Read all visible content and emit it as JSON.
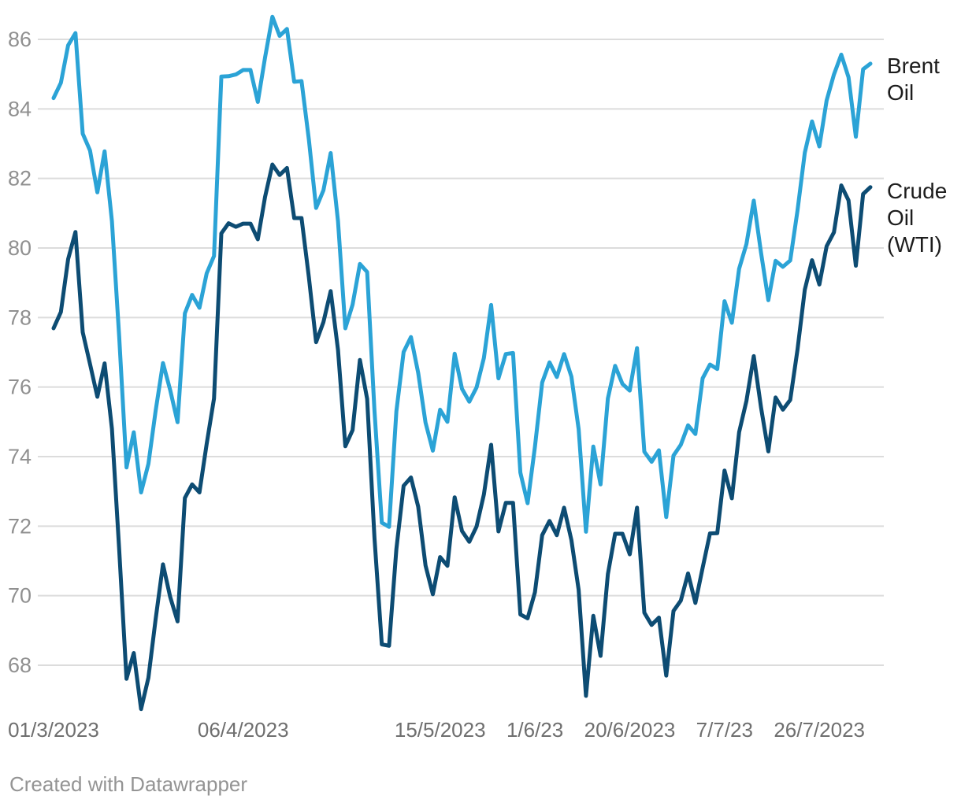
{
  "footer": "Created with Datawrapper",
  "chart_data": {
    "type": "line",
    "title": "",
    "xlabel": "",
    "ylabel": "",
    "grid": true,
    "legend_position": "right-end-of-lines",
    "ylim": [
      68,
      86
    ],
    "yticks": [
      68,
      70,
      72,
      74,
      76,
      78,
      80,
      82,
      84,
      86
    ],
    "x_tick_labels": [
      {
        "label": "01/3/2023",
        "index": 0
      },
      {
        "label": "06/4/2023",
        "index": 26
      },
      {
        "label": "15/5/2023",
        "index": 53
      },
      {
        "label": "1/6/23",
        "index": 66
      },
      {
        "label": "20/6/2023",
        "index": 79
      },
      {
        "label": "7/7/23",
        "index": 92
      },
      {
        "label": "26/7/2023",
        "index": 105
      }
    ],
    "series": [
      {
        "name": "Brent Oil",
        "label_lines": "Brent\nOil",
        "color": "#2ba3d6",
        "values": [
          84.31,
          84.75,
          85.83,
          86.18,
          83.29,
          82.8,
          81.6,
          82.78,
          80.77,
          77.45,
          73.69,
          74.7,
          72.97,
          73.79,
          75.32,
          76.69,
          75.91,
          74.99,
          78.12,
          78.65,
          78.28,
          79.27,
          79.77,
          84.93,
          84.94,
          84.99,
          85.12,
          85.12,
          84.2,
          85.48,
          86.65,
          86.1,
          86.3,
          84.78,
          84.8,
          83.12,
          81.15,
          81.66,
          82.73,
          80.77,
          77.69,
          78.37,
          79.54,
          79.31,
          75.32,
          72.1,
          71.98,
          75.3,
          77.01,
          77.44,
          76.41,
          74.98,
          74.17,
          75.35,
          75.0,
          76.96,
          75.95,
          75.58,
          75.99,
          76.84,
          78.36,
          76.25,
          76.95,
          76.98,
          73.54,
          72.66,
          74.28,
          76.13,
          76.71,
          76.29,
          76.95,
          76.3,
          74.79,
          71.84,
          74.29,
          73.2,
          75.67,
          76.61,
          76.09,
          75.9,
          77.12,
          74.14,
          73.85,
          74.18,
          72.26,
          74.03,
          74.34,
          74.9,
          74.65,
          76.25,
          76.65,
          76.52,
          78.47,
          77.85,
          79.4,
          80.11,
          81.36,
          79.87,
          78.5,
          79.63,
          79.46,
          79.64,
          81.07,
          82.74,
          83.64,
          82.92,
          84.24,
          84.99,
          85.56,
          84.91,
          83.2,
          85.14,
          85.3
        ]
      },
      {
        "name": "Crude Oil (WTI)",
        "label_lines": "Crude\nOil\n(WTI)",
        "color": "#0d4c73",
        "values": [
          77.69,
          78.16,
          79.68,
          80.46,
          77.58,
          76.66,
          75.72,
          76.68,
          74.8,
          71.33,
          67.61,
          68.35,
          66.74,
          67.64,
          69.33,
          70.9,
          69.96,
          69.26,
          72.81,
          73.2,
          72.97,
          74.37,
          75.67,
          80.42,
          80.71,
          80.61,
          80.7,
          80.7,
          80.25,
          81.47,
          82.4,
          82.1,
          82.3,
          80.86,
          80.86,
          79.16,
          77.29,
          77.87,
          78.76,
          77.07,
          74.3,
          74.76,
          76.78,
          75.66,
          71.66,
          68.6,
          68.56,
          71.34,
          73.16,
          73.4,
          72.56,
          70.87,
          70.04,
          71.11,
          70.86,
          72.83,
          71.86,
          71.55,
          71.99,
          72.91,
          74.34,
          71.85,
          72.67,
          72.67,
          69.46,
          69.35,
          70.1,
          71.74,
          72.15,
          71.74,
          72.53,
          71.6,
          70.17,
          67.12,
          69.42,
          68.27,
          70.62,
          71.78,
          71.78,
          71.19,
          72.53,
          69.51,
          69.16,
          69.37,
          67.7,
          69.56,
          69.86,
          70.64,
          69.79,
          70.8,
          71.79,
          71.8,
          73.6,
          72.8,
          74.7,
          75.6,
          76.89,
          75.42,
          74.15,
          75.7,
          75.35,
          75.63,
          77.07,
          78.8,
          79.65,
          78.95,
          80.05,
          80.45,
          81.8,
          81.37,
          79.49,
          81.55,
          81.75
        ]
      }
    ]
  }
}
